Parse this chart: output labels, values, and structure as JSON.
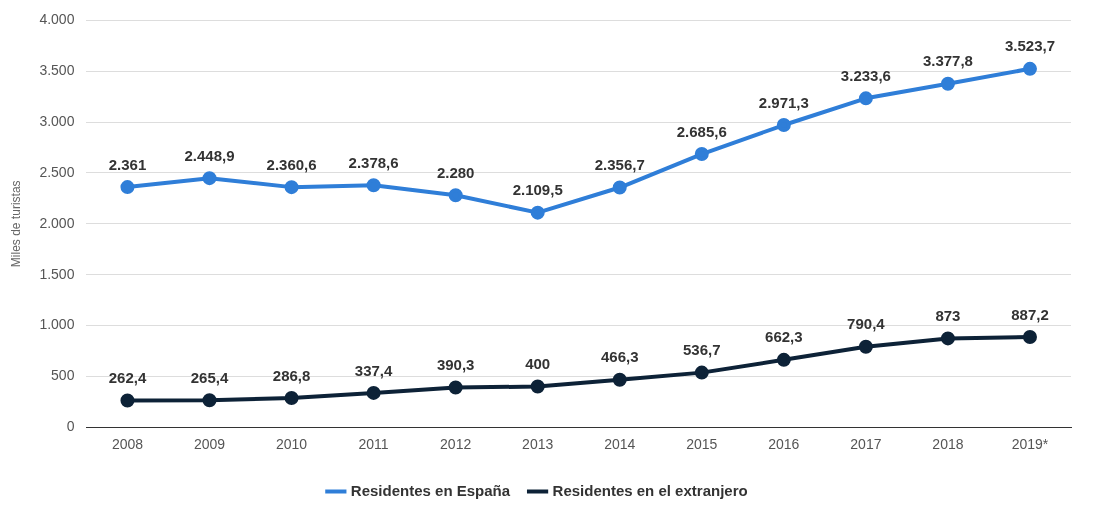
{
  "chart_data": {
    "type": "line",
    "ylabel": "Miles de turistas",
    "categories": [
      "2008",
      "2009",
      "2010",
      "2011",
      "2012",
      "2013",
      "2014",
      "2015",
      "2016",
      "2017",
      "2018",
      "2019*"
    ],
    "series": [
      {
        "name": "Residentes en España",
        "color": "#2f7ed8",
        "values": [
          2361,
          2448.9,
          2360.6,
          2378.6,
          2280,
          2109.5,
          2356.7,
          2685.6,
          2971.3,
          3233.6,
          3377.8,
          3523.7
        ],
        "value_labels": [
          "2.361",
          "2.448,9",
          "2.360,6",
          "2.378,6",
          "2.280",
          "2.109,5",
          "2.356,7",
          "2.685,6",
          "2.971,3",
          "3.233,6",
          "3.377,8",
          "3.523,7"
        ]
      },
      {
        "name": "Residentes en el extranjero",
        "color": "#0d2237",
        "values": [
          262.4,
          265.4,
          286.8,
          337.4,
          390.3,
          400,
          466.3,
          536.7,
          662.3,
          790.4,
          873,
          887.2
        ],
        "value_labels": [
          "262,4",
          "265,4",
          "286,8",
          "337,4",
          "390,3",
          "400",
          "466,3",
          "536,7",
          "662,3",
          "790,4",
          "873",
          "887,2"
        ]
      }
    ],
    "ylim": [
      0,
      4000
    ],
    "yticks": [
      0,
      500,
      {
        "value": 1000,
        "label": "1.000"
      },
      {
        "value": 1500,
        "label": "1.500"
      },
      {
        "value": 2000,
        "label": "2.000"
      },
      {
        "value": 2500,
        "label": "2.500"
      },
      {
        "value": 3000,
        "label": "3.000"
      },
      {
        "value": 3500,
        "label": "3.500"
      },
      {
        "value": 4000,
        "label": "4.000"
      }
    ],
    "grid": "y",
    "legend": "bottom",
    "marker": "circle",
    "line_style": "solid"
  }
}
